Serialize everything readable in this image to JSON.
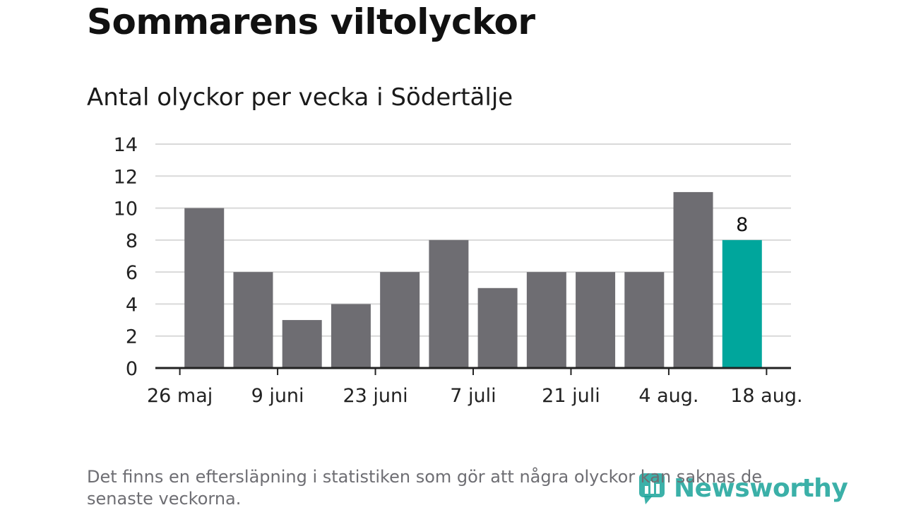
{
  "title": "Sommarens viltolyckor",
  "subtitle": "Antal olyckor per vecka i Södertälje",
  "footnote": "Det finns en eftersläpning i statistiken som gör att några olyckor kan saknas de senaste veckorna.",
  "logo_text": "Newsworthy",
  "colors": {
    "bar": "#6e6d72",
    "highlight": "#00a69c",
    "grid": "#d9d9d9",
    "axis": "#222222",
    "logo": "#1aa39a"
  },
  "chart_data": {
    "type": "bar",
    "title": "Sommarens viltolyckor",
    "subtitle": "Antal olyckor per vecka i Södertälje",
    "values": [
      10,
      6,
      3,
      4,
      6,
      8,
      5,
      6,
      6,
      6,
      11,
      8
    ],
    "highlight_index": 11,
    "highlight_label": "8",
    "x_tick_labels": [
      "26 maj",
      "9 juni",
      "23 juni",
      "7 juli",
      "21 juli",
      "4 aug.",
      "18 aug."
    ],
    "y_ticks": [
      0,
      2,
      4,
      6,
      8,
      10,
      12,
      14
    ],
    "ylim": [
      0,
      14
    ],
    "grid": true,
    "legend": "none"
  }
}
